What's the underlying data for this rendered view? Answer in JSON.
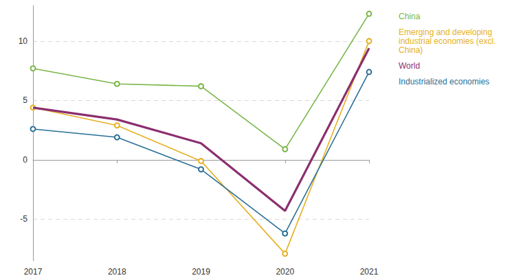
{
  "chart_data": {
    "type": "line",
    "categories": [
      "2017",
      "2018",
      "2019",
      "2020",
      "2021"
    ],
    "series": [
      {
        "name": "China",
        "color": "#7ab648",
        "marker": "circle",
        "values": [
          7.7,
          6.4,
          6.2,
          0.9,
          12.3
        ]
      },
      {
        "name": "Emerging and developing industrial economies (excl. China)",
        "color": "#e6b022",
        "marker": "circle",
        "values": [
          4.4,
          2.9,
          -0.1,
          -7.9,
          10.0
        ]
      },
      {
        "name": "World",
        "color": "#8b2f6f",
        "marker": "none",
        "values": [
          4.4,
          3.4,
          1.4,
          -4.3,
          9.4
        ]
      },
      {
        "name": "Industrialized economies",
        "color": "#2b6f96",
        "marker": "circle",
        "values": [
          2.6,
          1.9,
          -0.8,
          -6.2,
          7.4
        ]
      }
    ],
    "ylim": [
      -8.5,
      13
    ],
    "yticks": [
      -5,
      0,
      5,
      10
    ],
    "grid": true,
    "legend": "top-right"
  }
}
